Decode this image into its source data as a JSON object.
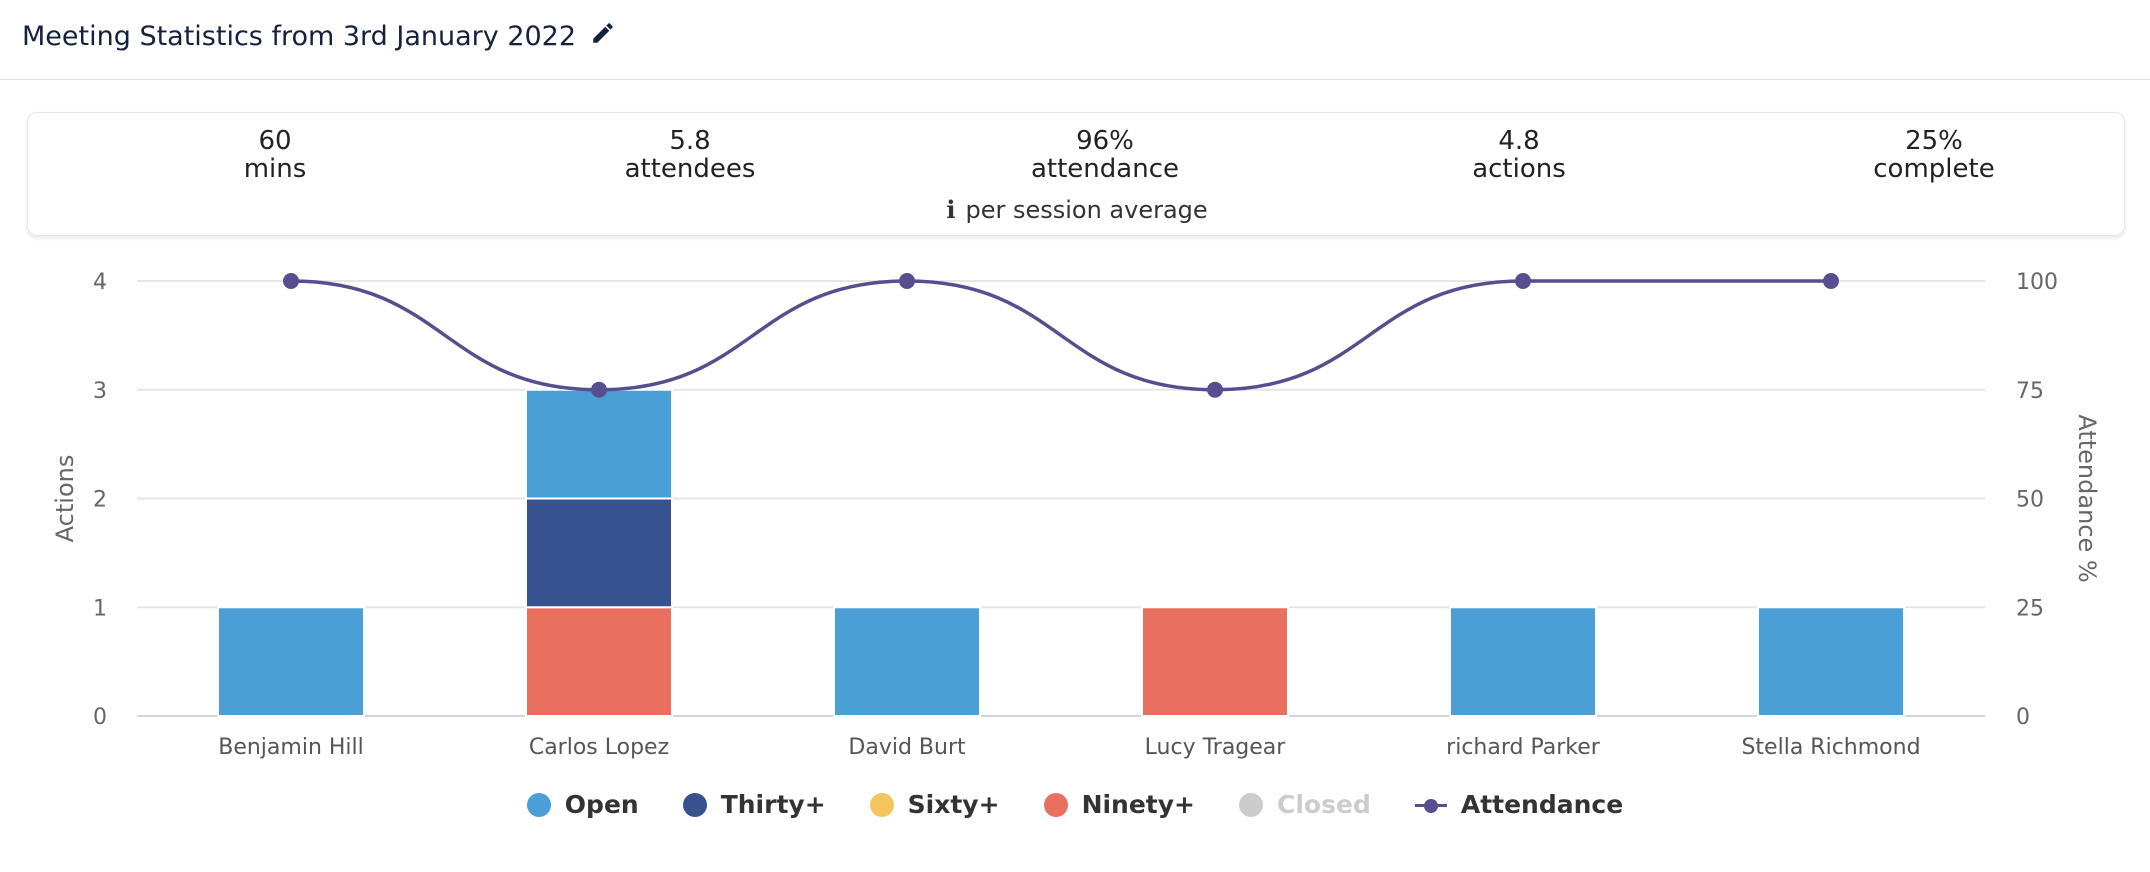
{
  "header": {
    "title": "Meeting Statistics from 3rd January 2022",
    "edit_icon": "pencil-icon"
  },
  "stats": [
    {
      "value": "60",
      "label": "mins"
    },
    {
      "value": "5.8",
      "label": "attendees"
    },
    {
      "value": "96%",
      "label": "attendance"
    },
    {
      "value": "4.8",
      "label": "actions"
    },
    {
      "value": "25%",
      "label": "complete"
    }
  ],
  "stats_note": {
    "icon": "info-icon",
    "text": "per session average"
  },
  "colors": {
    "open": "#4a9fd6",
    "thirty": "#37528f",
    "sixty": "#f4c55c",
    "ninety": "#e9705e",
    "closed": "#cccccc",
    "attendance": "#564e8f"
  },
  "chart_data": {
    "type": "bar",
    "stacked": true,
    "categories": [
      "Benjamin Hill",
      "Carlos Lopez",
      "David Burt",
      "Lucy Tragear",
      "richard Parker",
      "Stella Richmond"
    ],
    "series": [
      {
        "name": "Open",
        "values": [
          1,
          1,
          1,
          0,
          1,
          1
        ]
      },
      {
        "name": "Thirty+",
        "values": [
          0,
          1,
          0,
          0,
          0,
          0
        ]
      },
      {
        "name": "Sixty+",
        "values": [
          0,
          0,
          0,
          0,
          0,
          0
        ]
      },
      {
        "name": "Ninety+",
        "values": [
          0,
          1,
          0,
          1,
          0,
          0
        ]
      },
      {
        "name": "Closed",
        "values": [
          0,
          0,
          0,
          0,
          0,
          0
        ],
        "hidden": true
      },
      {
        "name": "Attendance",
        "type": "line",
        "axis": "right",
        "values": [
          100,
          75,
          100,
          75,
          100,
          100
        ]
      }
    ],
    "ylabel": "Actions",
    "ylabel_right": "Attendance %",
    "ylim": [
      0,
      4
    ],
    "yticks": [
      "0",
      "1",
      "2",
      "3",
      "4"
    ],
    "ylim_right": [
      0,
      100
    ],
    "yticks_right": [
      "0",
      "25",
      "50",
      "75",
      "100"
    ],
    "grid": true,
    "legend_position": "bottom"
  }
}
